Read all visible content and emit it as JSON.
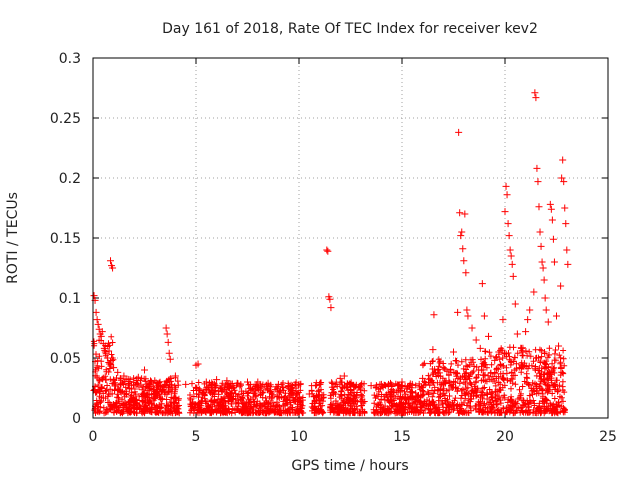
{
  "chart_data": {
    "type": "scatter",
    "title": "Day 161 of 2018, Rate Of TEC Index for receiver kev2",
    "xlabel": "GPS time / hours",
    "ylabel": "ROTI / TECUs",
    "xlim": [
      0,
      25
    ],
    "ylim": [
      0,
      0.3
    ],
    "xticks": [
      0,
      5,
      10,
      15,
      20,
      25
    ],
    "xtick_labels": [
      "0",
      "5",
      "10",
      "15",
      "20",
      "25"
    ],
    "yticks": [
      0,
      0.05,
      0.1,
      0.15,
      0.2,
      0.25,
      0.3
    ],
    "ytick_labels": [
      "0",
      "0.05",
      "0.1",
      "0.15",
      "0.2",
      "0.25",
      "0.3"
    ],
    "grid": true,
    "marker": "plus",
    "color": "#ff0000",
    "series": [
      {
        "name": "ROTI",
        "points": [
          [
            0.05,
            0.102
          ],
          [
            0.1,
            0.098
          ],
          [
            0.15,
            0.088
          ],
          [
            0.2,
            0.082
          ],
          [
            0.25,
            0.078
          ],
          [
            0.3,
            0.074
          ],
          [
            0.35,
            0.07
          ],
          [
            0.4,
            0.068
          ],
          [
            0.45,
            0.072
          ],
          [
            0.5,
            0.062
          ],
          [
            0.55,
            0.058
          ],
          [
            0.6,
            0.055
          ],
          [
            0.7,
            0.05
          ],
          [
            0.8,
            0.045
          ],
          [
            0.85,
            0.131
          ],
          [
            0.9,
            0.127
          ],
          [
            0.95,
            0.125
          ],
          [
            1.0,
            0.042
          ],
          [
            1.2,
            0.038
          ],
          [
            1.5,
            0.035
          ],
          [
            1.8,
            0.032
          ],
          [
            2.2,
            0.034
          ],
          [
            2.5,
            0.04
          ],
          [
            3.0,
            0.031
          ],
          [
            3.5,
            0.028
          ],
          [
            3.55,
            0.075
          ],
          [
            3.6,
            0.07
          ],
          [
            3.65,
            0.063
          ],
          [
            3.7,
            0.054
          ],
          [
            3.75,
            0.049
          ],
          [
            4.0,
            0.035
          ],
          [
            4.5,
            0.028
          ],
          [
            5.0,
            0.044
          ],
          [
            5.1,
            0.045
          ],
          [
            5.5,
            0.03
          ],
          [
            6.0,
            0.032
          ],
          [
            6.5,
            0.031
          ],
          [
            7.0,
            0.029
          ],
          [
            7.5,
            0.03
          ],
          [
            8.0,
            0.03
          ],
          [
            8.5,
            0.029
          ],
          [
            9.0,
            0.028
          ],
          [
            9.5,
            0.027
          ],
          [
            10.0,
            0.028
          ],
          [
            10.5,
            0.02
          ],
          [
            11.0,
            0.028
          ],
          [
            11.35,
            0.14
          ],
          [
            11.4,
            0.139
          ],
          [
            11.45,
            0.101
          ],
          [
            11.5,
            0.099
          ],
          [
            11.55,
            0.092
          ],
          [
            11.6,
            0.021
          ],
          [
            12.0,
            0.033
          ],
          [
            12.2,
            0.035
          ],
          [
            12.5,
            0.028
          ],
          [
            13.0,
            0.025
          ],
          [
            13.5,
            0.027
          ],
          [
            14.0,
            0.028
          ],
          [
            14.5,
            0.027
          ],
          [
            15.0,
            0.03
          ],
          [
            15.5,
            0.028
          ],
          [
            16.0,
            0.033
          ],
          [
            16.5,
            0.057
          ],
          [
            16.55,
            0.086
          ],
          [
            17.0,
            0.042
          ],
          [
            17.5,
            0.055
          ],
          [
            17.7,
            0.088
          ],
          [
            17.75,
            0.238
          ],
          [
            17.8,
            0.171
          ],
          [
            17.85,
            0.152
          ],
          [
            17.9,
            0.155
          ],
          [
            17.95,
            0.141
          ],
          [
            18.0,
            0.131
          ],
          [
            18.05,
            0.17
          ],
          [
            18.1,
            0.121
          ],
          [
            18.15,
            0.09
          ],
          [
            18.2,
            0.085
          ],
          [
            18.4,
            0.075
          ],
          [
            18.6,
            0.065
          ],
          [
            18.8,
            0.058
          ],
          [
            18.9,
            0.112
          ],
          [
            19.0,
            0.085
          ],
          [
            19.2,
            0.068
          ],
          [
            19.5,
            0.048
          ],
          [
            19.7,
            0.055
          ],
          [
            19.9,
            0.082
          ],
          [
            20.0,
            0.172
          ],
          [
            20.05,
            0.193
          ],
          [
            20.1,
            0.186
          ],
          [
            20.15,
            0.162
          ],
          [
            20.2,
            0.152
          ],
          [
            20.25,
            0.14
          ],
          [
            20.3,
            0.135
          ],
          [
            20.35,
            0.128
          ],
          [
            20.4,
            0.118
          ],
          [
            20.5,
            0.095
          ],
          [
            20.6,
            0.07
          ],
          [
            20.8,
            0.058
          ],
          [
            21.0,
            0.072
          ],
          [
            21.1,
            0.082
          ],
          [
            21.2,
            0.09
          ],
          [
            21.4,
            0.105
          ],
          [
            21.45,
            0.271
          ],
          [
            21.5,
            0.267
          ],
          [
            21.55,
            0.208
          ],
          [
            21.6,
            0.197
          ],
          [
            21.65,
            0.176
          ],
          [
            21.7,
            0.155
          ],
          [
            21.75,
            0.143
          ],
          [
            21.8,
            0.13
          ],
          [
            21.85,
            0.125
          ],
          [
            21.9,
            0.115
          ],
          [
            21.95,
            0.1
          ],
          [
            22.0,
            0.09
          ],
          [
            22.1,
            0.08
          ],
          [
            22.2,
            0.178
          ],
          [
            22.25,
            0.174
          ],
          [
            22.3,
            0.165
          ],
          [
            22.35,
            0.149
          ],
          [
            22.4,
            0.13
          ],
          [
            22.5,
            0.085
          ],
          [
            22.6,
            0.06
          ],
          [
            22.7,
            0.11
          ],
          [
            22.75,
            0.2
          ],
          [
            22.8,
            0.215
          ],
          [
            22.85,
            0.197
          ],
          [
            22.9,
            0.175
          ],
          [
            22.95,
            0.162
          ],
          [
            23.0,
            0.14
          ],
          [
            23.05,
            0.128
          ]
        ]
      }
    ]
  }
}
